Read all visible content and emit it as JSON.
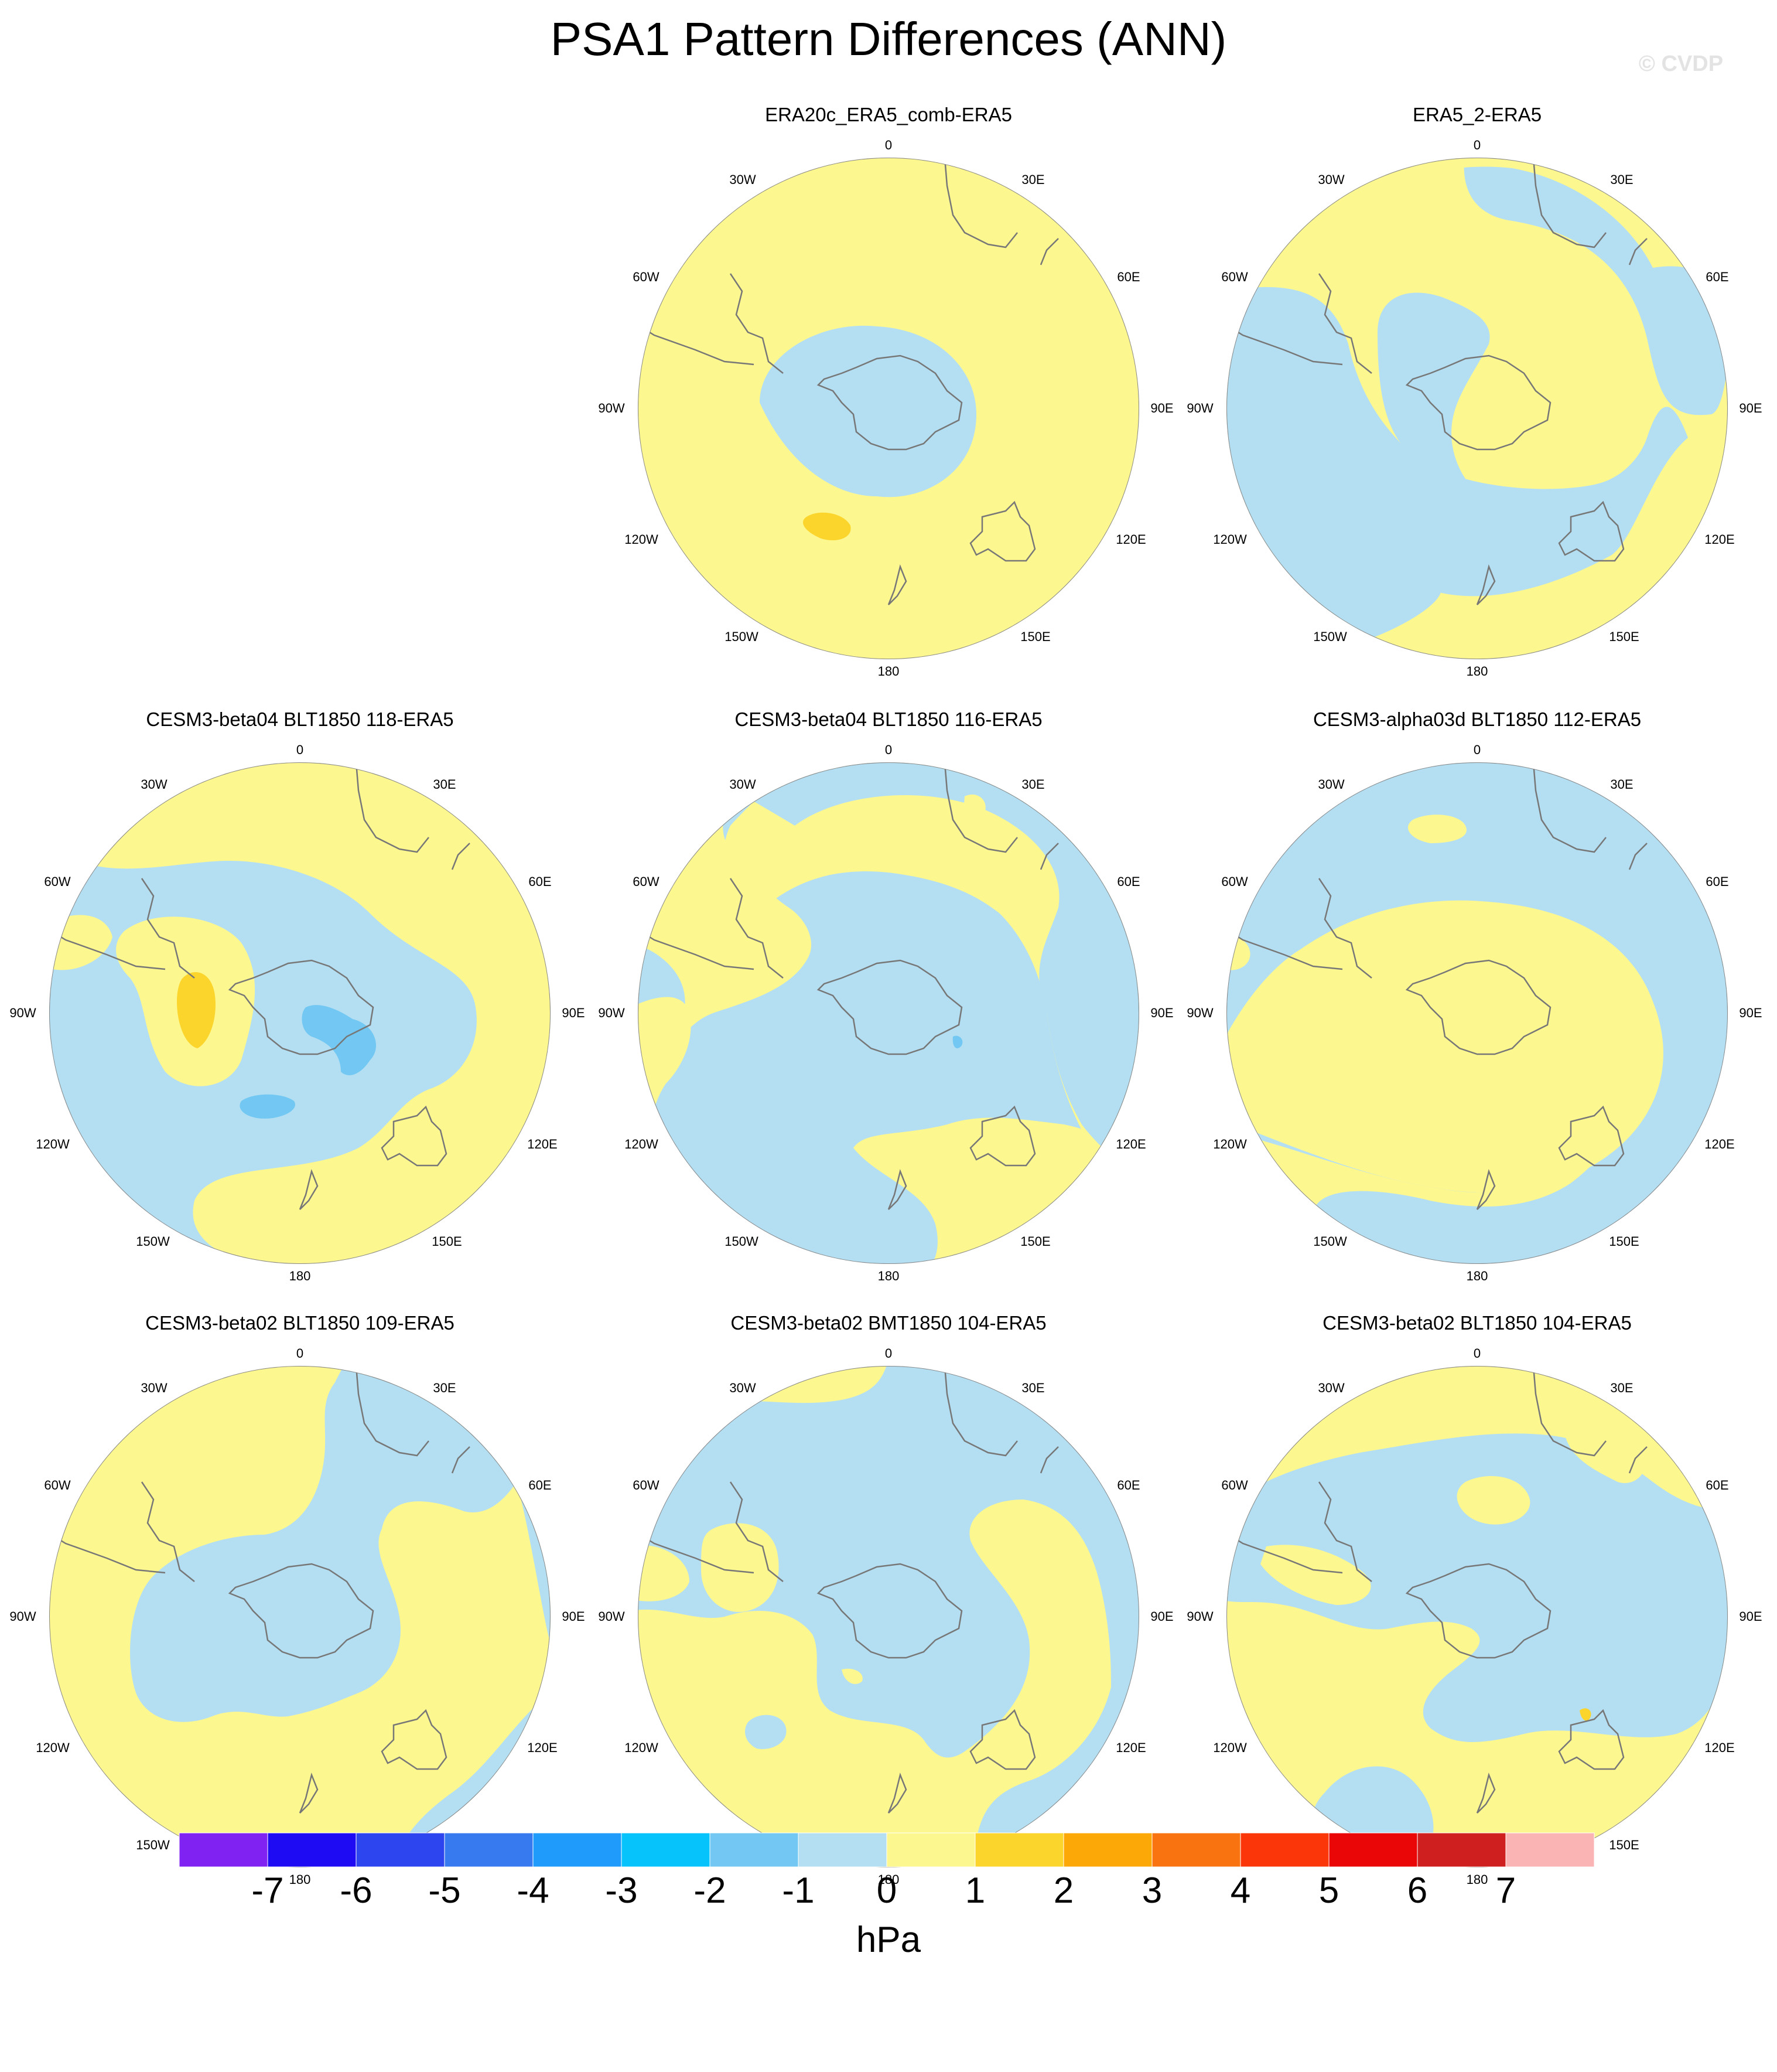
{
  "title": "PSA1 Pattern Differences (ANN)",
  "watermark": "© CVDP",
  "colors": {
    "background": "#ffffff",
    "coast": "#777777",
    "frame": "#888888",
    "neg1": "#b4dff2",
    "neg2": "#72c8f2",
    "pos1": "#fdf790",
    "pos2": "#fcd52c"
  },
  "map_labels": {
    "lon0": "0",
    "lon30e": "30E",
    "lon60e": "60E",
    "lon90e": "90E",
    "lon120e": "120E",
    "lon150e": "150E",
    "lon180": "180",
    "lon150w": "150W",
    "lon120w": "120W",
    "lon90w": "90W",
    "lon60w": "60W",
    "lon30w": "30W"
  },
  "panels": [
    {
      "title": "ERA20c_ERA5_comb-ERA5"
    },
    {
      "title": "ERA5_2-ERA5"
    },
    {
      "title": "CESM3-beta04 BLT1850 118-ERA5"
    },
    {
      "title": "CESM3-beta04 BLT1850 116-ERA5"
    },
    {
      "title": "CESM3-alpha03d BLT1850 112-ERA5"
    },
    {
      "title": "CESM3-beta02 BLT1850 109-ERA5"
    },
    {
      "title": "CESM3-beta02 BMT1850 104-ERA5"
    },
    {
      "title": "CESM3-beta02 BLT1850 104-ERA5"
    }
  ],
  "colorbar": {
    "units": "hPa",
    "ticks": [
      "-7",
      "-6",
      "-5",
      "-4",
      "-3",
      "-2",
      "-1",
      "0",
      "1",
      "2",
      "3",
      "4",
      "5",
      "6",
      "7"
    ],
    "colors": [
      "#7f22f2",
      "#1f0af4",
      "#2d45ee",
      "#3779ee",
      "#1f9bfb",
      "#06c4fb",
      "#72c8f2",
      "#b4dff2",
      "#fdf790",
      "#fcd52c",
      "#fca908",
      "#f97411",
      "#fb3608",
      "#ea0606",
      "#cf1f1f",
      "#fbb4b4"
    ]
  }
}
